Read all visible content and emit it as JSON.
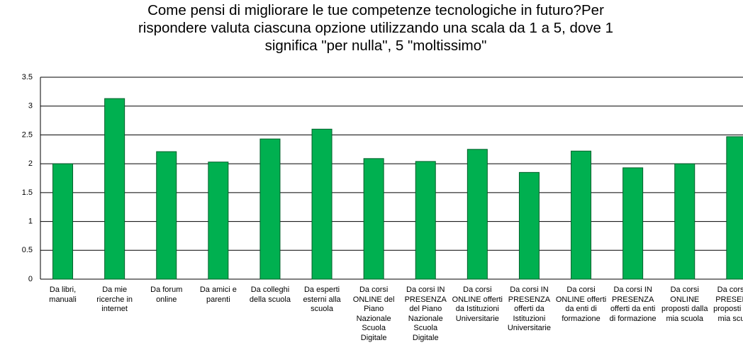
{
  "chart_data": {
    "type": "bar",
    "title": "Come pensi di migliorare le tue competenze tecnologiche in futuro?Per rispondere valuta ciascuna opzione utilizzando una scala da 1 a 5, dove 1 significa \"per nulla\", 5 \"moltissimo\"",
    "categories": [
      "Da libri, manuali",
      "Da mie ricerche in internet",
      "Da forum online",
      "Da amici e parenti",
      "Da colleghi della scuola",
      "Da esperti esterni alla scuola",
      "Da corsi ONLINE del Piano Nazionale Scuola Digitale",
      "Da corsi IN PRESENZA del Piano Nazionale Scuola Digitale",
      "Da corsi ONLINE offerti da Istituzioni Universitarie",
      "Da corsi IN PRESENZA offerti da Istituzioni Universitarie",
      "Da corsi ONLINE offerti da enti di formazione",
      "Da corsi IN PRESENZA offerti da enti di formazione",
      "Da corsi ONLINE proposti dalla mia scuola",
      "Da corsi IN PRESENZA proposti dalla mia scuola"
    ],
    "values": [
      2.0,
      3.13,
      2.21,
      2.03,
      2.43,
      2.6,
      2.09,
      2.04,
      2.25,
      1.85,
      2.22,
      1.93,
      2.0,
      2.47
    ],
    "color": "#00b050",
    "ylim": [
      0,
      3.5
    ],
    "yticks": [
      0,
      0.5,
      1,
      1.5,
      2,
      2.5,
      3,
      3.5
    ],
    "grid": true
  }
}
